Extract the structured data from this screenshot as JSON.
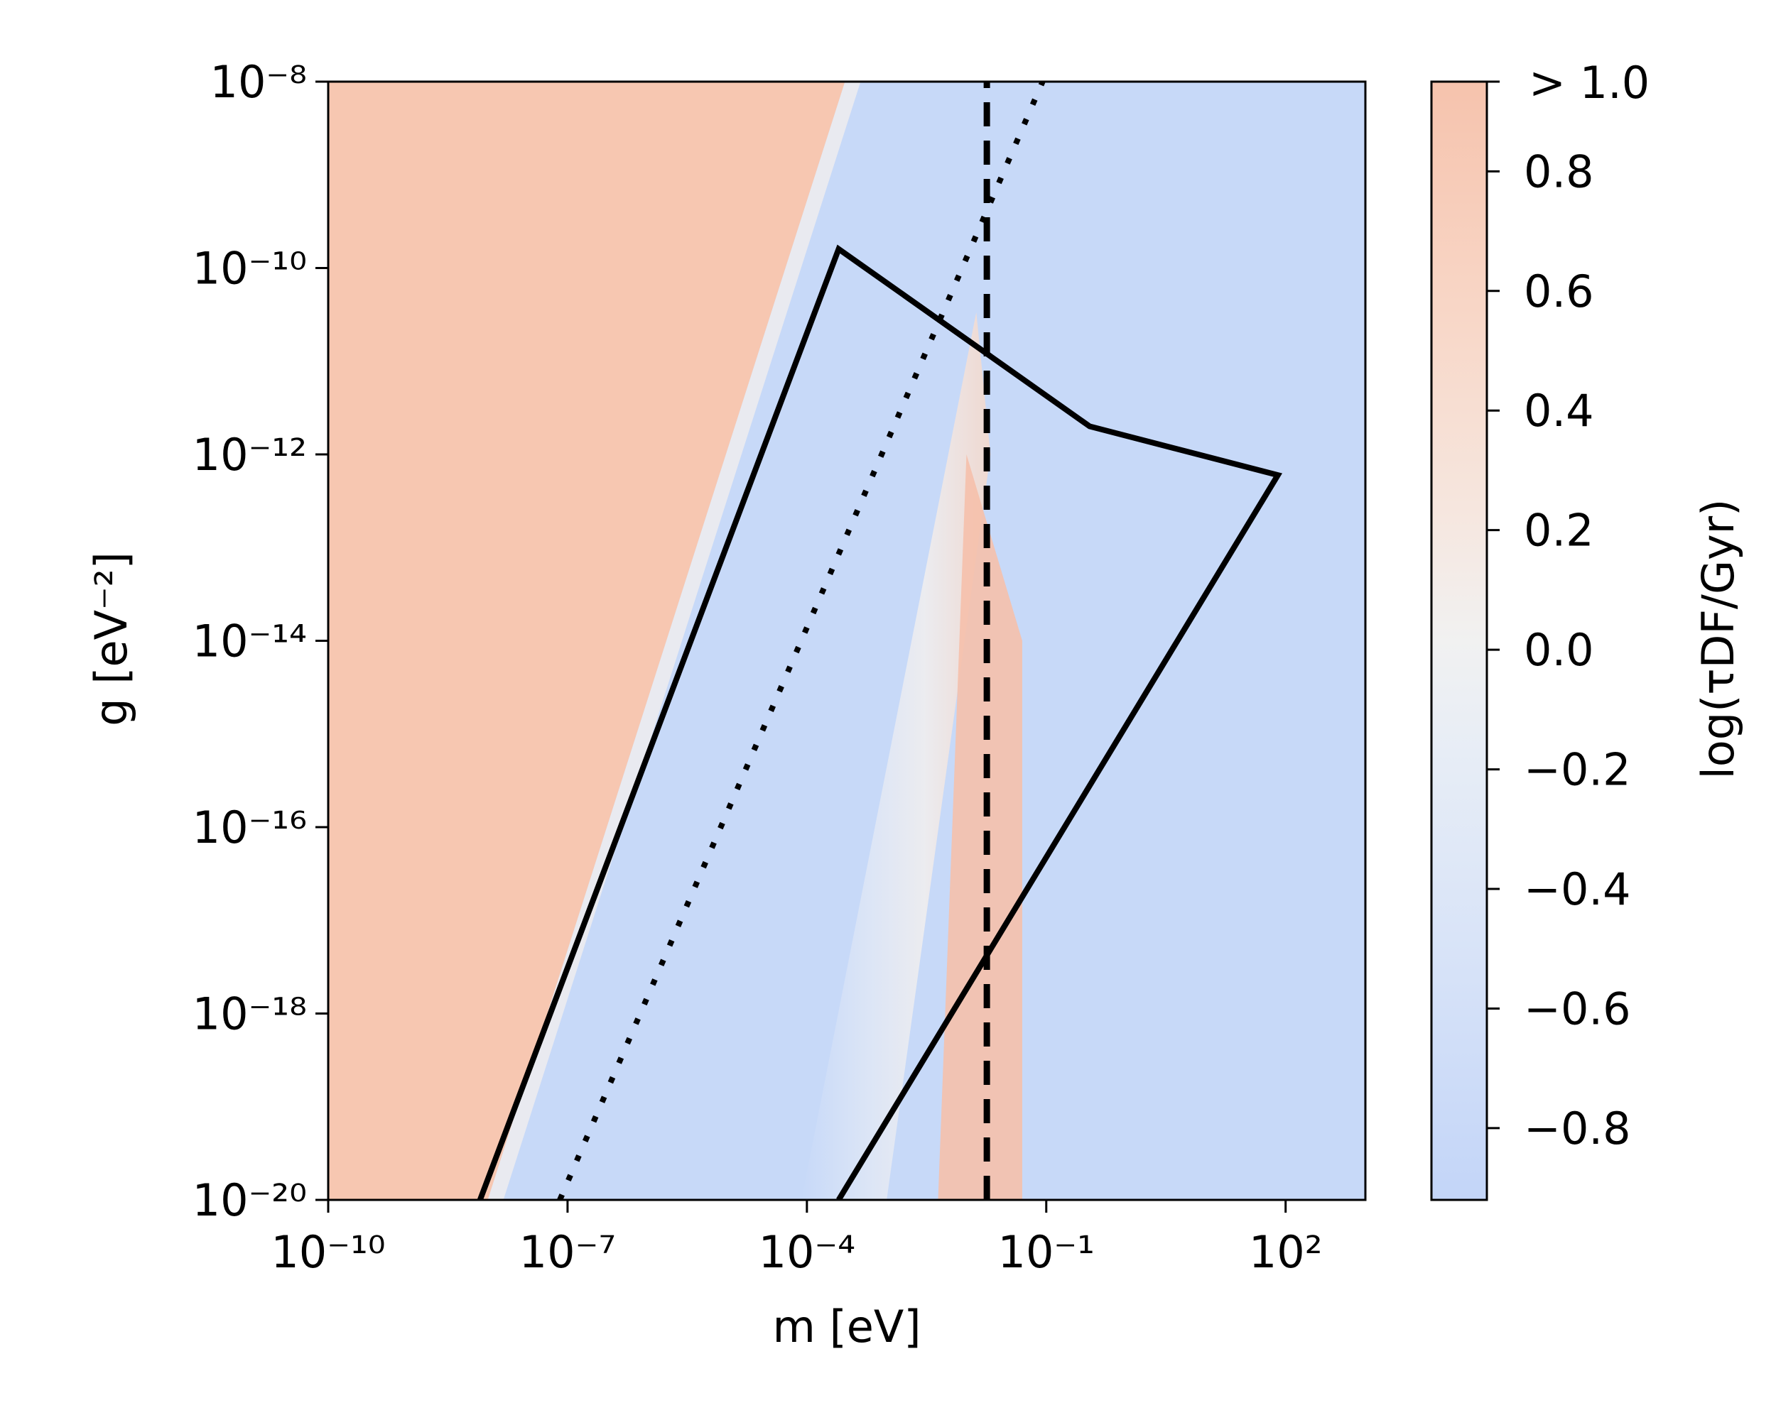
{
  "chart_data": {
    "type": "heatmap",
    "xlabel": "m [eV]",
    "ylabel": "g [eV⁻²]",
    "x_scale": "log",
    "y_scale": "log",
    "xlim": [
      1e-10,
      1000
    ],
    "ylim": [
      1e-20,
      1e-08
    ],
    "x_ticks": [
      1e-10,
      1e-07,
      0.0001,
      0.1,
      100
    ],
    "x_tick_labels": [
      "10⁻¹⁰",
      "10⁻⁷",
      "10⁻⁴",
      "10⁻¹",
      "10²"
    ],
    "y_ticks": [
      1e-20,
      1e-18,
      1e-16,
      1e-14,
      1e-12,
      1e-10,
      1e-08
    ],
    "y_tick_labels": [
      "10⁻²⁰",
      "10⁻¹⁸",
      "10⁻¹⁶",
      "10⁻¹⁴",
      "10⁻¹²",
      "10⁻¹⁰",
      "10⁻⁸"
    ],
    "colorbar": {
      "label": "log(τDF/Gyr)",
      "colormap": "coolwarm",
      "range": [
        -0.92,
        0.95
      ],
      "ticks": [
        -0.8,
        -0.6,
        -0.4,
        -0.2,
        0.0,
        0.2,
        0.4,
        0.6,
        0.8
      ],
      "tick_labels": [
        "−0.8",
        "−0.6",
        "−0.4",
        "−0.2",
        "0.0",
        "0.2",
        "0.4",
        "0.6",
        "0.8"
      ],
      "top_label": "> 1.0",
      "low_color": "#c7d9f8",
      "high_color": "#f7c7b1"
    },
    "heatmap_regions": {
      "saturated_left_boundary": [
        [
          1e-08,
          1e-20
        ],
        [
          0.0003,
          1e-08
        ]
      ],
      "transition_band": [
        [
          0.001,
          1e-20
        ],
        [
          0.02,
          1e-12
        ]
      ],
      "hot_vertical_strip_m": [
        0.01,
        0.05
      ]
    },
    "overlays": {
      "polygon": {
        "style": "solid",
        "points": [
          [
            8e-09,
            1e-20
          ],
          [
            0.00025,
            1.6e-10
          ],
          [
            0.35,
            2e-12
          ],
          [
            80,
            6e-13
          ],
          [
            0.00025,
            1e-20
          ]
        ]
      },
      "dotted_line": {
        "style": "dotted",
        "points": [
          [
            8e-08,
            1e-20
          ],
          [
            0.09,
            1e-08
          ]
        ]
      },
      "dashed_line": {
        "style": "dashed",
        "points": [
          [
            0.018,
            1e-20
          ],
          [
            0.018,
            1e-08
          ]
        ]
      }
    }
  }
}
